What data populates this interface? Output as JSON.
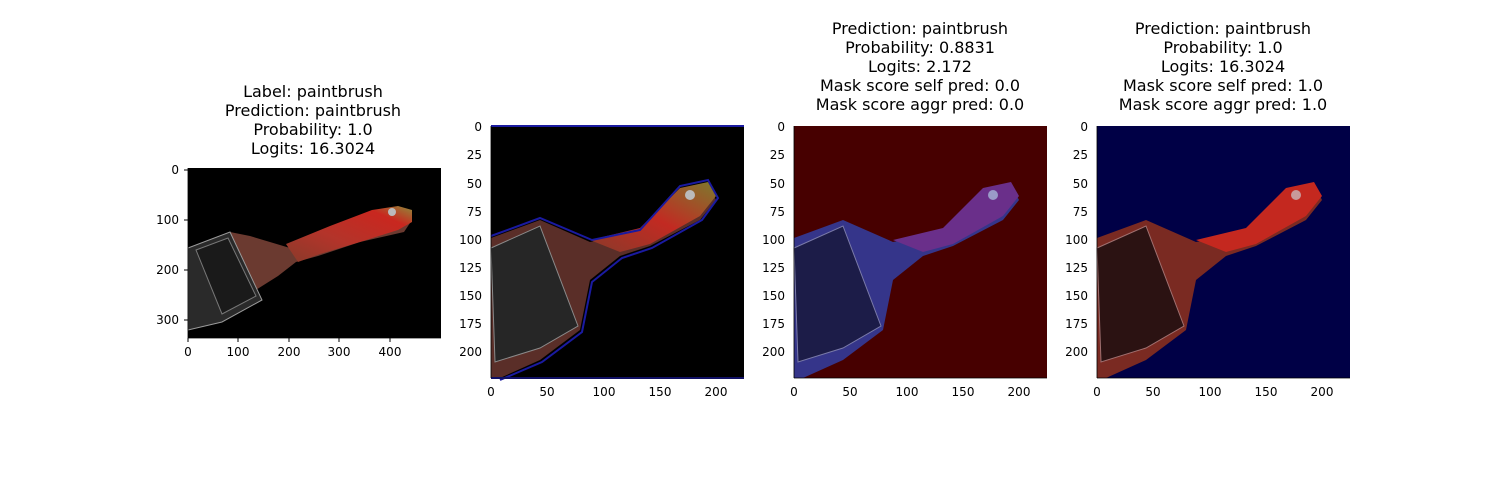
{
  "panels": [
    {
      "title_lines": [
        "Label: paintbrush",
        "Prediction: paintbrush",
        "Probability: 1.0",
        "Logits: 16.3024"
      ],
      "xticks": [
        "0",
        "100",
        "200",
        "300",
        "400"
      ],
      "yticks": [
        "0",
        "100",
        "200",
        "300"
      ],
      "background": "#000000",
      "overlay": "none"
    },
    {
      "title_lines": [],
      "xticks": [
        "0",
        "50",
        "100",
        "150",
        "200"
      ],
      "yticks": [
        "0",
        "25",
        "50",
        "75",
        "100",
        "125",
        "150",
        "175",
        "200"
      ],
      "background": "#000000",
      "overlay": "outline"
    },
    {
      "title_lines": [
        "Prediction: paintbrush",
        "Probability: 0.8831",
        "Logits: 2.172",
        "Mask score self pred: 0.0",
        "Mask score aggr pred: 0.0"
      ],
      "xticks": [
        "0",
        "50",
        "100",
        "150",
        "200"
      ],
      "yticks": [
        "0",
        "25",
        "50",
        "75",
        "100",
        "125",
        "150",
        "175",
        "200"
      ],
      "background": "#470000",
      "overlay": "red"
    },
    {
      "title_lines": [
        "Prediction: paintbrush",
        "Probability: 1.0",
        "Logits: 16.3024",
        "Mask score self pred: 1.0",
        "Mask score aggr pred: 1.0"
      ],
      "xticks": [
        "0",
        "50",
        "100",
        "150",
        "200"
      ],
      "yticks": [
        "0",
        "25",
        "50",
        "75",
        "100",
        "125",
        "150",
        "175",
        "200"
      ],
      "background": "#000046",
      "overlay": "blue"
    }
  ]
}
